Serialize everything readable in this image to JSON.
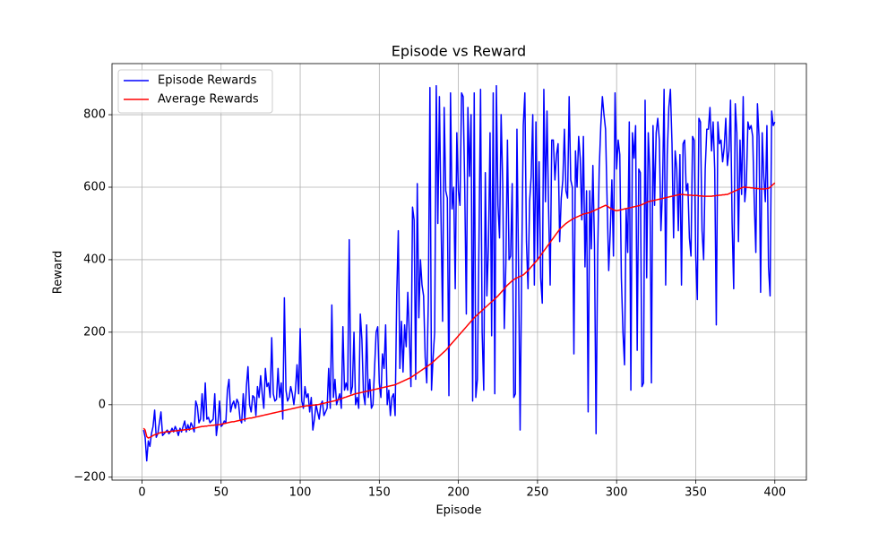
{
  "chart_data": {
    "type": "line",
    "title": "Episode vs Reward",
    "xlabel": "Episode",
    "ylabel": "Reward",
    "x": [
      1,
      2,
      3,
      4,
      5,
      6,
      7,
      8,
      9,
      10,
      11,
      12,
      13,
      14,
      15,
      16,
      17,
      18,
      19,
      20,
      21,
      22,
      23,
      24,
      25,
      26,
      27,
      28,
      29,
      30,
      31,
      32,
      33,
      34,
      35,
      36,
      37,
      38,
      39,
      40,
      41,
      42,
      43,
      44,
      45,
      46,
      47,
      48,
      49,
      50,
      51,
      52,
      53,
      54,
      55,
      56,
      57,
      58,
      59,
      60,
      61,
      62,
      63,
      64,
      65,
      66,
      67,
      68,
      69,
      70,
      71,
      72,
      73,
      74,
      75,
      76,
      77,
      78,
      79,
      80,
      81,
      82,
      83,
      84,
      85,
      86,
      87,
      88,
      89,
      90,
      91,
      92,
      93,
      94,
      95,
      96,
      97,
      98,
      99,
      100,
      101,
      102,
      103,
      104,
      105,
      106,
      107,
      108,
      109,
      110,
      111,
      112,
      113,
      114,
      115,
      116,
      117,
      118,
      119,
      120,
      121,
      122,
      123,
      124,
      125,
      126,
      127,
      128,
      129,
      130,
      131,
      132,
      133,
      134,
      135,
      136,
      137,
      138,
      139,
      140,
      141,
      142,
      143,
      144,
      145,
      146,
      147,
      148,
      149,
      150,
      151,
      152,
      153,
      154,
      155,
      156,
      157,
      158,
      159,
      160,
      161,
      162,
      163,
      164,
      165,
      166,
      167,
      168,
      169,
      170,
      171,
      172,
      173,
      174,
      175,
      176,
      177,
      178,
      179,
      180,
      181,
      182,
      183,
      184,
      185,
      186,
      187,
      188,
      189,
      190,
      191,
      192,
      193,
      194,
      195,
      196,
      197,
      198,
      199,
      200,
      201,
      202,
      203,
      204,
      205,
      206,
      207,
      208,
      209,
      210,
      211,
      212,
      213,
      214,
      215,
      216,
      217,
      218,
      219,
      220,
      221,
      222,
      223,
      224,
      225,
      226,
      227,
      228,
      229,
      230,
      231,
      232,
      233,
      234,
      235,
      236,
      237,
      238,
      239,
      240,
      241,
      242,
      243,
      244,
      245,
      246,
      247,
      248,
      249,
      250,
      251,
      252,
      253,
      254,
      255,
      256,
      257,
      258,
      259,
      260,
      261,
      262,
      263,
      264,
      265,
      266,
      267,
      268,
      269,
      270,
      271,
      272,
      273,
      274,
      275,
      276,
      277,
      278,
      279,
      280,
      281,
      282,
      283,
      284,
      285,
      286,
      287,
      288,
      289,
      290,
      291,
      292,
      293,
      294,
      295,
      296,
      297,
      298,
      299,
      300,
      301,
      302,
      303,
      304,
      305,
      306,
      307,
      308,
      309,
      310,
      311,
      312,
      313,
      314,
      315,
      316,
      317,
      318,
      319,
      320,
      321,
      322,
      323,
      324,
      325,
      326,
      327,
      328,
      329,
      330,
      331,
      332,
      333,
      334,
      335,
      336,
      337,
      338,
      339,
      340,
      341,
      342,
      343,
      344,
      345,
      346,
      347,
      348,
      349,
      350,
      351,
      352,
      353,
      354,
      355,
      356,
      357,
      358,
      359,
      360,
      361,
      362,
      363,
      364,
      365,
      366,
      367,
      368,
      369,
      370,
      371,
      372,
      373,
      374,
      375,
      376,
      377,
      378,
      379,
      380,
      381,
      382,
      383,
      384,
      385,
      386,
      387,
      388,
      389,
      390,
      391,
      392,
      393,
      394,
      395,
      396,
      397,
      398,
      399,
      400
    ],
    "series": [
      {
        "name": "Episode Rewards",
        "color": "#0000ff",
        "values": [
          -70,
          -90,
          -155,
          -100,
          -115,
          -80,
          -60,
          -15,
          -90,
          -80,
          -50,
          -20,
          -85,
          -80,
          -75,
          -70,
          -80,
          -75,
          -65,
          -75,
          -60,
          -70,
          -85,
          -65,
          -75,
          -60,
          -45,
          -75,
          -55,
          -70,
          -50,
          -60,
          -75,
          10,
          -5,
          -50,
          -40,
          30,
          -45,
          60,
          -40,
          -35,
          -50,
          -45,
          -40,
          30,
          -85,
          -50,
          10,
          -60,
          -55,
          -45,
          -50,
          40,
          70,
          -20,
          0,
          10,
          -10,
          15,
          5,
          -40,
          -50,
          30,
          -45,
          50,
          105,
          0,
          -20,
          25,
          20,
          -30,
          50,
          20,
          80,
          30,
          -10,
          100,
          50,
          60,
          20,
          185,
          30,
          10,
          15,
          100,
          20,
          60,
          -40,
          295,
          40,
          10,
          20,
          50,
          30,
          0,
          40,
          110,
          30,
          210,
          10,
          -10,
          50,
          20,
          30,
          -20,
          20,
          -70,
          -40,
          0,
          -20,
          -40,
          0,
          10,
          -30,
          -20,
          -10,
          100,
          -10,
          275,
          20,
          70,
          0,
          15,
          30,
          -10,
          215,
          40,
          60,
          40,
          455,
          30,
          50,
          200,
          0,
          20,
          -10,
          250,
          180,
          30,
          0,
          220,
          20,
          70,
          -10,
          0,
          100,
          200,
          215,
          60,
          20,
          140,
          100,
          220,
          0,
          40,
          -30,
          20,
          30,
          -30,
          300,
          480,
          100,
          230,
          90,
          220,
          160,
          310,
          190,
          50,
          545,
          510,
          70,
          610,
          240,
          400,
          330,
          300,
          130,
          60,
          290,
          875,
          40,
          130,
          200,
          880,
          500,
          850,
          520,
          230,
          820,
          590,
          570,
          25,
          860,
          540,
          600,
          320,
          750,
          590,
          550,
          860,
          850,
          600,
          250,
          820,
          630,
          800,
          10,
          860,
          20,
          70,
          450,
          870,
          200,
          40,
          640,
          300,
          440,
          750,
          190,
          860,
          30,
          880,
          550,
          460,
          800,
          610,
          210,
          390,
          730,
          400,
          410,
          610,
          20,
          30,
          760,
          380,
          -70,
          380,
          770,
          860,
          450,
          320,
          560,
          630,
          800,
          330,
          780,
          400,
          670,
          350,
          280,
          870,
          560,
          810,
          540,
          330,
          730,
          730,
          620,
          690,
          720,
          450,
          570,
          620,
          760,
          590,
          570,
          850,
          620,
          600,
          140,
          700,
          600,
          740,
          680,
          510,
          740,
          380,
          590,
          -20,
          590,
          430,
          660,
          440,
          -80,
          410,
          650,
          770,
          850,
          800,
          760,
          560,
          370,
          480,
          620,
          410,
          860,
          650,
          730,
          690,
          350,
          200,
          110,
          540,
          420,
          780,
          40,
          750,
          680,
          770,
          150,
          650,
          640,
          50,
          60,
          840,
          350,
          750,
          640,
          60,
          770,
          550,
          750,
          790,
          730,
          480,
          590,
          870,
          330,
          690,
          820,
          870,
          720,
          460,
          700,
          650,
          480,
          690,
          330,
          720,
          730,
          590,
          610,
          460,
          410,
          740,
          730,
          410,
          290,
          790,
          780,
          480,
          400,
          650,
          760,
          760,
          820,
          700,
          780,
          650,
          220,
          780,
          720,
          730,
          670,
          710,
          790,
          660,
          700,
          840,
          500,
          320,
          830,
          750,
          450,
          730,
          580,
          850,
          560,
          610,
          780,
          760,
          770,
          740,
          560,
          420,
          830,
          740,
          310,
          750,
          630,
          560,
          770,
          380,
          300,
          810,
          770,
          780
        ]
      },
      {
        "name": "Average Rewards",
        "color": "#ff0000",
        "values": [
          -65,
          -70,
          -88,
          -92,
          -90,
          -88,
          -85,
          -83,
          -82,
          -80,
          -78,
          -77,
          -76,
          -76,
          -75,
          -75,
          -74,
          -74,
          -73,
          -73,
          -72,
          -72,
          -71,
          -71,
          -70,
          -70,
          -69,
          -69,
          -68,
          -68,
          -67,
          -66,
          -65,
          -64,
          -63,
          -62,
          -61,
          -60,
          -60,
          -59,
          -59,
          -58,
          -58,
          -57,
          -57,
          -56,
          -56,
          -55,
          -55,
          -54,
          -53,
          -52,
          -51,
          -50,
          -49,
          -48,
          -47,
          -47,
          -46,
          -45,
          -44,
          -43,
          -42,
          -41,
          -40,
          -39,
          -38,
          -37,
          -37,
          -36,
          -35,
          -34,
          -33,
          -32,
          -31,
          -30,
          -29,
          -28,
          -27,
          -26,
          -25,
          -24,
          -23,
          -22,
          -21,
          -20,
          -19,
          -18,
          -17,
          -16,
          -15,
          -14,
          -13,
          -12,
          -11,
          -10,
          -9,
          -8,
          -7,
          -6,
          -5,
          -4,
          -4,
          -3,
          -3,
          -2,
          -2,
          -1,
          -1,
          0,
          0,
          1,
          2,
          3,
          4,
          5,
          6,
          7,
          8,
          9,
          10,
          11,
          12,
          14,
          15,
          17,
          18,
          20,
          21,
          23,
          24,
          26,
          27,
          29,
          30,
          31,
          32,
          33,
          34,
          35,
          36,
          37,
          38,
          39,
          40,
          41,
          42,
          43,
          44,
          45,
          46,
          47,
          48,
          49,
          50,
          51,
          52,
          53,
          54,
          55,
          57,
          59,
          61,
          63,
          65,
          67,
          69,
          71,
          73,
          75,
          78,
          81,
          84,
          87,
          90,
          93,
          96,
          99,
          102,
          105,
          108,
          111,
          114,
          118,
          122,
          126,
          130,
          134,
          138,
          142,
          146,
          150,
          155,
          160,
          165,
          170,
          175,
          180,
          185,
          190,
          195,
          200,
          205,
          210,
          215,
          220,
          225,
          230,
          235,
          240,
          244,
          248,
          252,
          256,
          260,
          264,
          268,
          272,
          276,
          280,
          284,
          288,
          292,
          296,
          300,
          305,
          310,
          315,
          320,
          325,
          330,
          334,
          338,
          342,
          345,
          348,
          350,
          352,
          354,
          356,
          358,
          362,
          366,
          370,
          375,
          380,
          385,
          390,
          395,
          400,
          406,
          412,
          418,
          424,
          430,
          436,
          442,
          448,
          454,
          460,
          466,
          472,
          478,
          484,
          488,
          492,
          496,
          500,
          503,
          506,
          509,
          512,
          514,
          516,
          518,
          520,
          522,
          524,
          526,
          527,
          528,
          529,
          530,
          532,
          534,
          536,
          538,
          540,
          542,
          544,
          546,
          548,
          550,
          548,
          545,
          542,
          540,
          538,
          536,
          535,
          536,
          537,
          538,
          539,
          540,
          541,
          542,
          543,
          544,
          545,
          546,
          547,
          548,
          549,
          550,
          552,
          554,
          556,
          558,
          560,
          561,
          562,
          563,
          564,
          565,
          566,
          567,
          568,
          569,
          570,
          571,
          572,
          573,
          574,
          575,
          576,
          577,
          578,
          579,
          580,
          580,
          580,
          579,
          579,
          578,
          578,
          578,
          577,
          577,
          577,
          577,
          576,
          576,
          576,
          575,
          575,
          575,
          575,
          575,
          575,
          576,
          576,
          577,
          577,
          578,
          578,
          579,
          579,
          580,
          580,
          582,
          584,
          586,
          588,
          590,
          592,
          594,
          596,
          598,
          600,
          600,
          600,
          599,
          599,
          598,
          598,
          597,
          597,
          596,
          596,
          595,
          595,
          595,
          596,
          596,
          597,
          600,
          604,
          608,
          612
        ]
      }
    ],
    "xlim": [
      -18.95,
      419.95
    ],
    "xticks": [
      0,
      50,
      100,
      150,
      200,
      250,
      300,
      350,
      400
    ],
    "ylim": [
      -208,
      941
    ],
    "yticks": [
      {
        "value": -200,
        "label": "−200"
      },
      0,
      200,
      400,
      600,
      800
    ],
    "grid": true,
    "legend": "upper left"
  }
}
